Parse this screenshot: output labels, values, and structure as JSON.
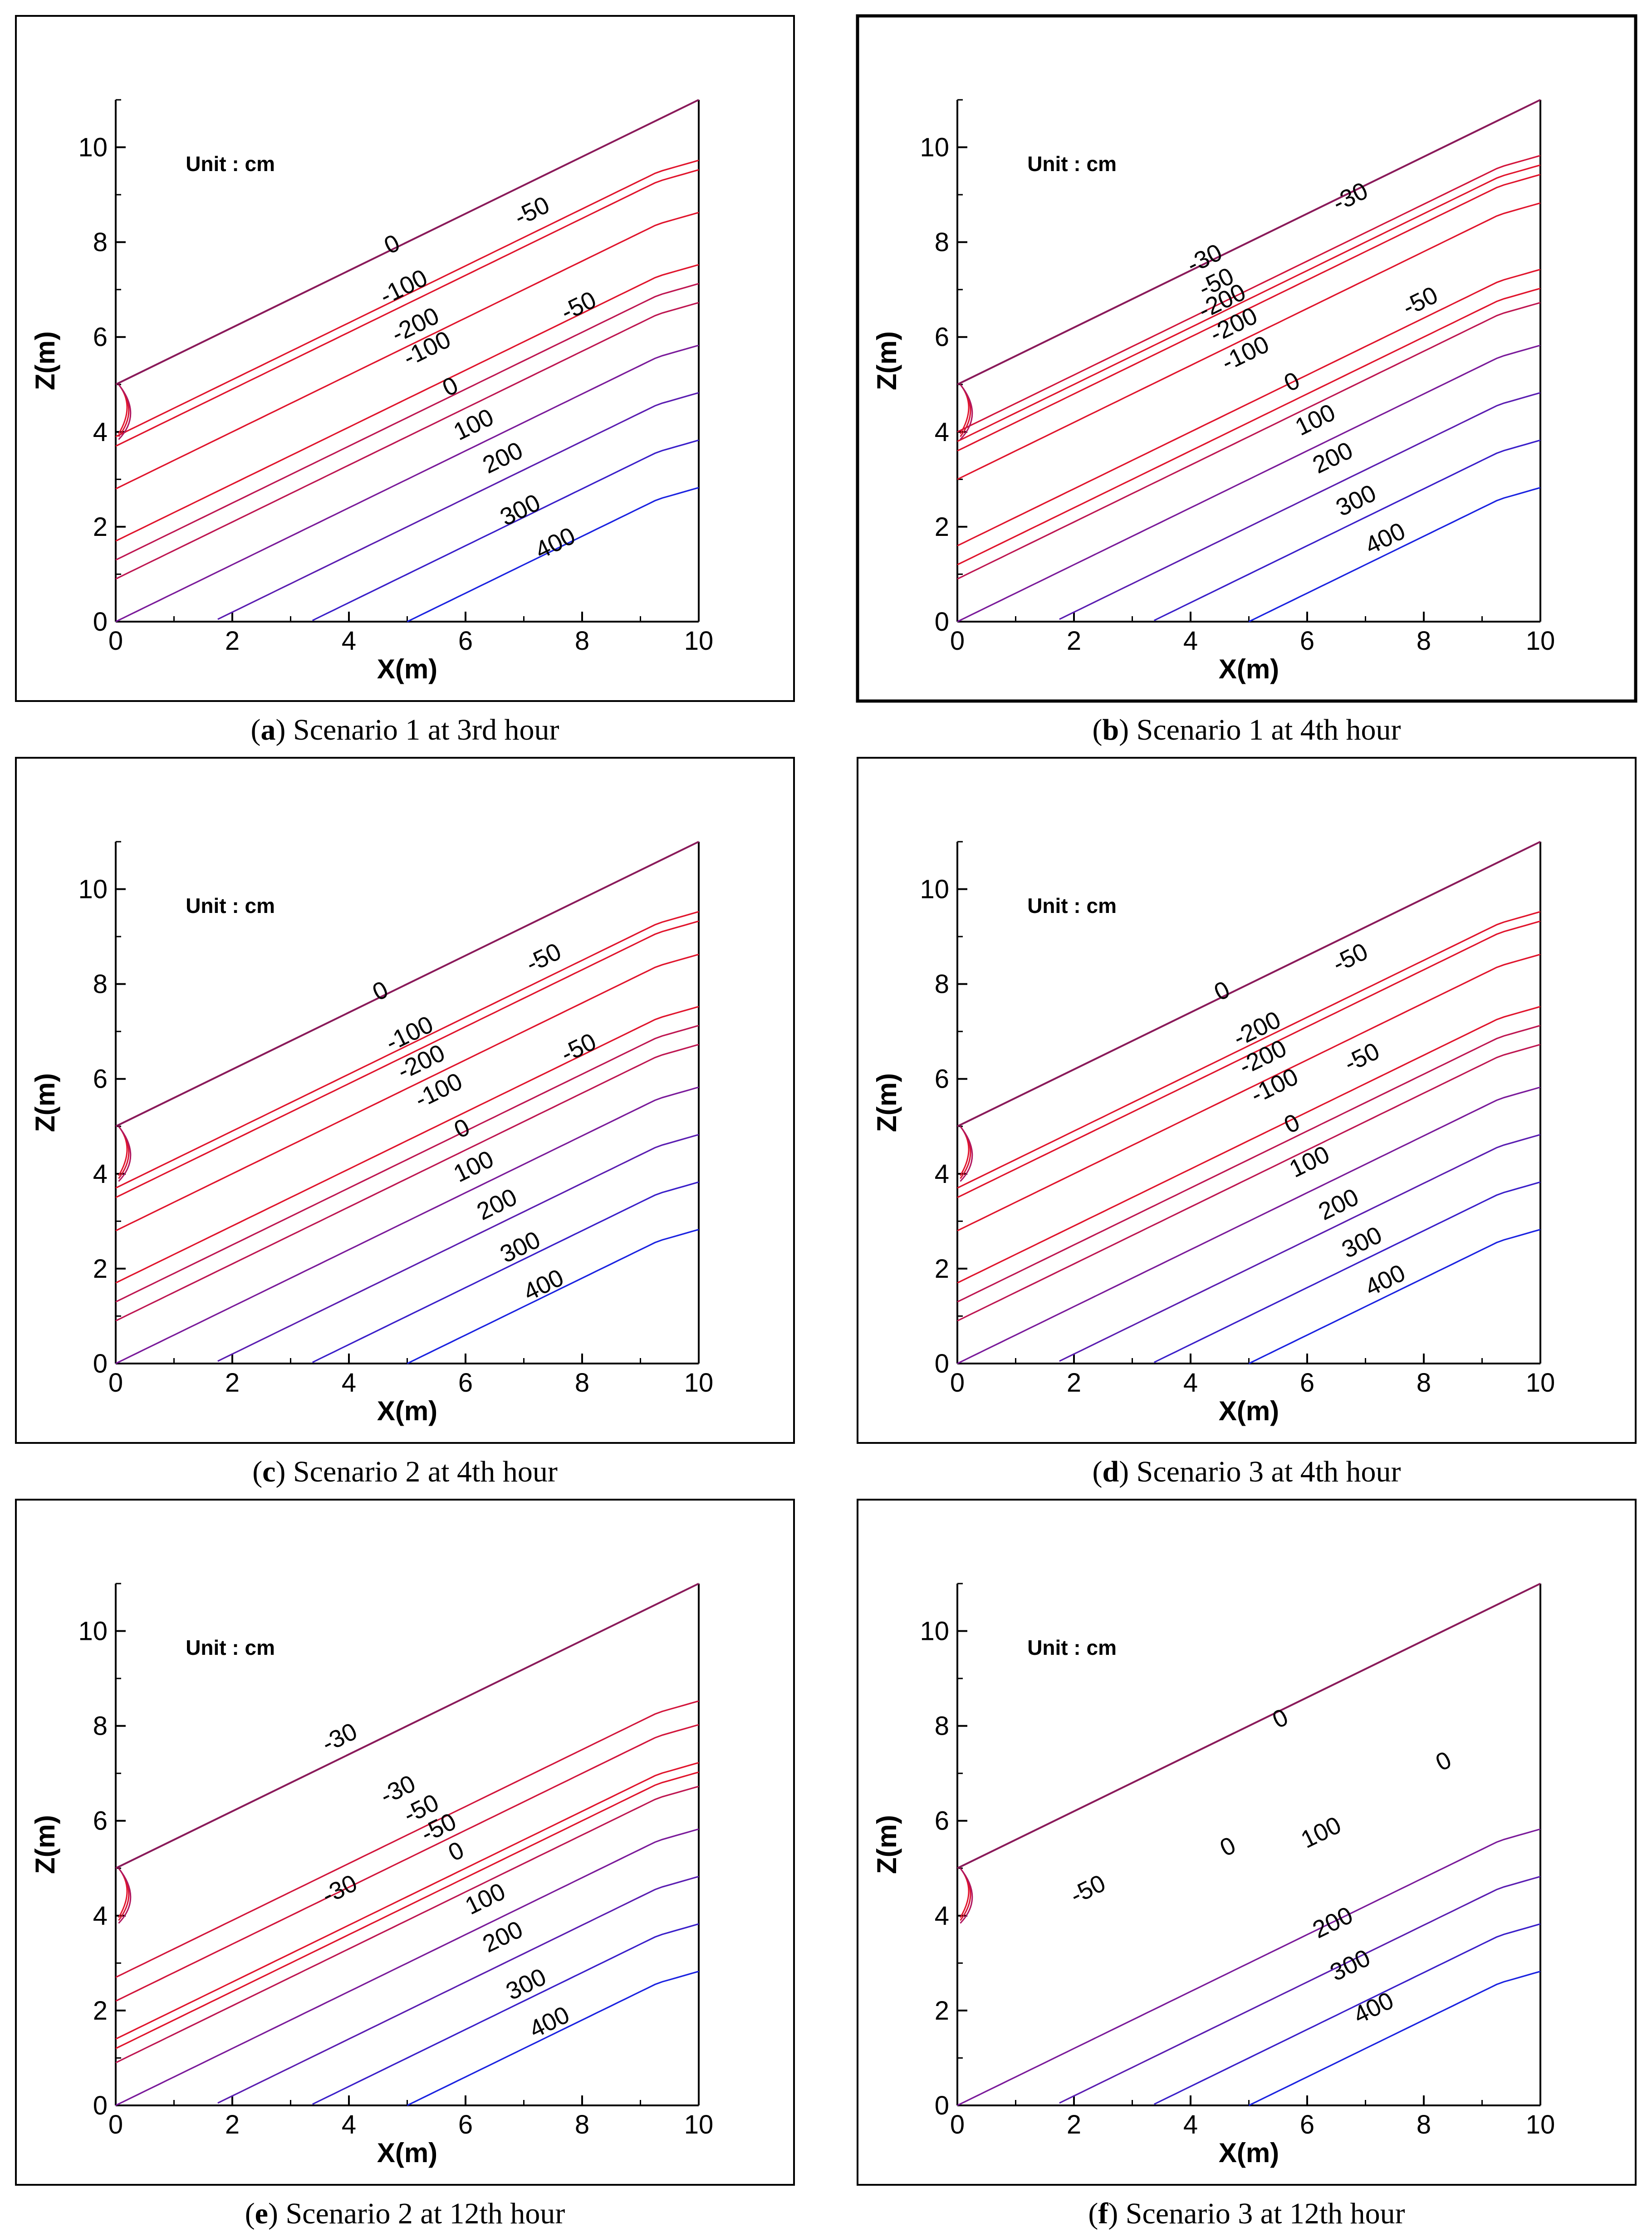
{
  "chart_data": [
    {
      "type": "contour",
      "panel": "a",
      "caption_letter": "a",
      "caption_text": "Scenario 1 at 3rd hour",
      "unit_label": "Unit : cm",
      "xlabel": "X(m)",
      "ylabel": "Z(m)",
      "xlim": [
        0,
        10
      ],
      "ylim": [
        0,
        11
      ],
      "xticks": [
        "0",
        "2",
        "4",
        "6",
        "8",
        "10"
      ],
      "yticks": [
        "0",
        "2",
        "4",
        "6",
        "8",
        "10"
      ],
      "surface": {
        "z_left": 5,
        "z_right": 11
      },
      "contour_labels": [
        {
          "text": "0",
          "x": 4.8,
          "y": 7.8
        },
        {
          "text": "-50",
          "x": 7.2,
          "y": 8.5
        },
        {
          "text": "-100",
          "x": 5.0,
          "y": 6.9
        },
        {
          "text": "-200",
          "x": 5.2,
          "y": 6.1
        },
        {
          "text": "-100",
          "x": 5.4,
          "y": 5.6
        },
        {
          "text": "-50",
          "x": 8.0,
          "y": 6.5
        },
        {
          "text": "0",
          "x": 5.8,
          "y": 4.8
        },
        {
          "text": "100",
          "x": 6.2,
          "y": 4.0
        },
        {
          "text": "200",
          "x": 6.7,
          "y": 3.3
        },
        {
          "text": "300",
          "x": 7.0,
          "y": 2.2
        },
        {
          "text": "400",
          "x": 7.6,
          "y": 1.5
        }
      ],
      "depth_layers": [
        {
          "level": -100,
          "d_far": 1.1
        },
        {
          "level": -200,
          "d_far": 1.3
        },
        {
          "level": -100,
          "d_far": 2.2
        },
        {
          "level": -50,
          "d_far": 3.3
        },
        {
          "level": 0,
          "d_far": 3.7
        },
        {
          "level": 0,
          "d_far": 4.1
        },
        {
          "level": 100,
          "d_far": 5.0
        },
        {
          "level": 200,
          "d_far": 6.0
        },
        {
          "level": 300,
          "d_far": 7.0
        },
        {
          "level": 400,
          "d_far": 8.0
        }
      ]
    },
    {
      "type": "contour",
      "panel": "b",
      "caption_letter": "b",
      "caption_text": "Scenario 1 at 4th hour",
      "unit_label": "Unit : cm",
      "xlabel": "X(m)",
      "ylabel": "Z(m)",
      "xlim": [
        0,
        10
      ],
      "ylim": [
        0,
        11
      ],
      "xticks": [
        "0",
        "2",
        "4",
        "6",
        "8",
        "10"
      ],
      "yticks": [
        "0",
        "2",
        "4",
        "6",
        "8",
        "10"
      ],
      "surface": {
        "z_left": 5,
        "z_right": 11
      },
      "contour_labels": [
        {
          "text": "-30",
          "x": 6.8,
          "y": 8.8
        },
        {
          "text": "-30",
          "x": 4.3,
          "y": 7.5
        },
        {
          "text": "-50",
          "x": 4.5,
          "y": 7.0
        },
        {
          "text": "-200",
          "x": 4.6,
          "y": 6.6
        },
        {
          "text": "-200",
          "x": 4.8,
          "y": 6.1
        },
        {
          "text": "-100",
          "x": 5.0,
          "y": 5.5
        },
        {
          "text": "-50",
          "x": 8.0,
          "y": 6.6
        },
        {
          "text": "0",
          "x": 5.8,
          "y": 4.9
        },
        {
          "text": "100",
          "x": 6.2,
          "y": 4.1
        },
        {
          "text": "200",
          "x": 6.5,
          "y": 3.3
        },
        {
          "text": "300",
          "x": 6.9,
          "y": 2.4
        },
        {
          "text": "400",
          "x": 7.4,
          "y": 1.6
        }
      ],
      "depth_layers": [
        {
          "level": -30,
          "d_far": 1.0
        },
        {
          "level": -50,
          "d_far": 1.2
        },
        {
          "level": -200,
          "d_far": 1.4
        },
        {
          "level": -200,
          "d_far": 2.0
        },
        {
          "level": -100,
          "d_far": 3.4
        },
        {
          "level": -50,
          "d_far": 3.8
        },
        {
          "level": 0,
          "d_far": 4.1
        },
        {
          "level": 100,
          "d_far": 5.0
        },
        {
          "level": 200,
          "d_far": 6.0
        },
        {
          "level": 300,
          "d_far": 7.0
        },
        {
          "level": 400,
          "d_far": 8.0
        }
      ]
    },
    {
      "type": "contour",
      "panel": "c",
      "caption_letter": "c",
      "caption_text": "Scenario 2 at 4th hour",
      "unit_label": "Unit : cm",
      "xlabel": "X(m)",
      "ylabel": "Z(m)",
      "xlim": [
        0,
        10
      ],
      "ylim": [
        0,
        11
      ],
      "xticks": [
        "0",
        "2",
        "4",
        "6",
        "8",
        "10"
      ],
      "yticks": [
        "0",
        "2",
        "4",
        "6",
        "8",
        "10"
      ],
      "surface": {
        "z_left": 5,
        "z_right": 11
      },
      "contour_labels": [
        {
          "text": "0",
          "x": 4.6,
          "y": 7.7
        },
        {
          "text": "-50",
          "x": 7.4,
          "y": 8.4
        },
        {
          "text": "-100",
          "x": 5.1,
          "y": 6.8
        },
        {
          "text": "-200",
          "x": 5.3,
          "y": 6.2
        },
        {
          "text": "-100",
          "x": 5.6,
          "y": 5.6
        },
        {
          "text": "-50",
          "x": 8.0,
          "y": 6.5
        },
        {
          "text": "0",
          "x": 6.0,
          "y": 4.8
        },
        {
          "text": "100",
          "x": 6.2,
          "y": 4.0
        },
        {
          "text": "200",
          "x": 6.6,
          "y": 3.2
        },
        {
          "text": "300",
          "x": 7.0,
          "y": 2.3
        },
        {
          "text": "400",
          "x": 7.4,
          "y": 1.5
        }
      ],
      "depth_layers": [
        {
          "level": -100,
          "d_far": 1.3
        },
        {
          "level": -200,
          "d_far": 1.5
        },
        {
          "level": -100,
          "d_far": 2.2
        },
        {
          "level": -50,
          "d_far": 3.3
        },
        {
          "level": 0,
          "d_far": 3.7
        },
        {
          "level": 0,
          "d_far": 4.1
        },
        {
          "level": 100,
          "d_far": 5.0
        },
        {
          "level": 200,
          "d_far": 6.0
        },
        {
          "level": 300,
          "d_far": 7.0
        },
        {
          "level": 400,
          "d_far": 8.0
        }
      ]
    },
    {
      "type": "contour",
      "panel": "d",
      "caption_letter": "d",
      "caption_text": "Scenario 3 at 4th hour",
      "unit_label": "Unit : cm",
      "xlabel": "X(m)",
      "ylabel": "Z(m)",
      "xlim": [
        0,
        10
      ],
      "ylim": [
        0,
        11
      ],
      "xticks": [
        "0",
        "2",
        "4",
        "6",
        "8",
        "10"
      ],
      "yticks": [
        "0",
        "2",
        "4",
        "6",
        "8",
        "10"
      ],
      "surface": {
        "z_left": 5,
        "z_right": 11
      },
      "contour_labels": [
        {
          "text": "0",
          "x": 4.6,
          "y": 7.7
        },
        {
          "text": "-50",
          "x": 6.8,
          "y": 8.4
        },
        {
          "text": "-200",
          "x": 5.2,
          "y": 6.9
        },
        {
          "text": "-200",
          "x": 5.3,
          "y": 6.3
        },
        {
          "text": "-100",
          "x": 5.5,
          "y": 5.7
        },
        {
          "text": "-50",
          "x": 7.0,
          "y": 6.3
        },
        {
          "text": "0",
          "x": 5.8,
          "y": 4.9
        },
        {
          "text": "100",
          "x": 6.1,
          "y": 4.1
        },
        {
          "text": "200",
          "x": 6.6,
          "y": 3.2
        },
        {
          "text": "300",
          "x": 7.0,
          "y": 2.4
        },
        {
          "text": "400",
          "x": 7.4,
          "y": 1.6
        }
      ],
      "depth_layers": [
        {
          "level": -200,
          "d_far": 1.3
        },
        {
          "level": -200,
          "d_far": 1.5
        },
        {
          "level": -100,
          "d_far": 2.2
        },
        {
          "level": -50,
          "d_far": 3.3
        },
        {
          "level": 0,
          "d_far": 3.7
        },
        {
          "level": 0,
          "d_far": 4.1
        },
        {
          "level": 100,
          "d_far": 5.0
        },
        {
          "level": 200,
          "d_far": 6.0
        },
        {
          "level": 300,
          "d_far": 7.0
        },
        {
          "level": 400,
          "d_far": 8.0
        }
      ]
    },
    {
      "type": "contour",
      "panel": "e",
      "caption_letter": "e",
      "caption_text": "Scenario 2 at 12th hour",
      "unit_label": "Unit : cm",
      "xlabel": "X(m)",
      "ylabel": "Z(m)",
      "xlim": [
        0,
        10
      ],
      "ylim": [
        0,
        11
      ],
      "xticks": [
        "0",
        "2",
        "4",
        "6",
        "8",
        "10"
      ],
      "yticks": [
        "0",
        "2",
        "4",
        "6",
        "8",
        "10"
      ],
      "surface": {
        "z_left": 5,
        "z_right": 11
      },
      "contour_labels": [
        {
          "text": "-30",
          "x": 3.9,
          "y": 7.6
        },
        {
          "text": "-30",
          "x": 4.9,
          "y": 6.5
        },
        {
          "text": "-50",
          "x": 5.3,
          "y": 6.1
        },
        {
          "text": "-50",
          "x": 5.6,
          "y": 5.7
        },
        {
          "text": "0",
          "x": 5.9,
          "y": 5.2
        },
        {
          "text": "-30",
          "x": 3.9,
          "y": 4.4
        },
        {
          "text": "100",
          "x": 6.4,
          "y": 4.2
        },
        {
          "text": "200",
          "x": 6.7,
          "y": 3.4
        },
        {
          "text": "300",
          "x": 7.1,
          "y": 2.4
        },
        {
          "text": "400",
          "x": 7.5,
          "y": 1.6
        }
      ],
      "depth_layers": [
        {
          "level": -30,
          "d_far": 2.3
        },
        {
          "level": -30,
          "d_far": 2.8
        },
        {
          "level": -50,
          "d_far": 3.6
        },
        {
          "level": -50,
          "d_far": 3.8
        },
        {
          "level": 0,
          "d_far": 4.1
        },
        {
          "level": 100,
          "d_far": 5.0
        },
        {
          "level": 200,
          "d_far": 6.0
        },
        {
          "level": 300,
          "d_far": 7.0
        },
        {
          "level": 400,
          "d_far": 8.0
        }
      ]
    },
    {
      "type": "contour",
      "panel": "f",
      "caption_letter": "f",
      "caption_text": "Scenario 3 at 12th hour",
      "unit_label": "Unit : cm",
      "xlabel": "X(m)",
      "ylabel": "Z(m)",
      "xlim": [
        0,
        10
      ],
      "ylim": [
        0,
        11
      ],
      "xticks": [
        "0",
        "2",
        "4",
        "6",
        "8",
        "10"
      ],
      "yticks": [
        "0",
        "2",
        "4",
        "6",
        "8",
        "10"
      ],
      "surface": {
        "z_left": 5,
        "z_right": 11
      },
      "contour_labels": [
        {
          "text": "0",
          "x": 5.6,
          "y": 8.0
        },
        {
          "text": "0",
          "x": 8.4,
          "y": 7.1
        },
        {
          "text": "0",
          "x": 4.7,
          "y": 5.3
        },
        {
          "text": "-50",
          "x": 2.3,
          "y": 4.4
        },
        {
          "text": "100",
          "x": 6.3,
          "y": 5.6
        },
        {
          "text": "200",
          "x": 6.5,
          "y": 3.7
        },
        {
          "text": "300",
          "x": 6.8,
          "y": 2.8
        },
        {
          "text": "400",
          "x": 7.2,
          "y": 1.9
        }
      ],
      "depth_layers": [
        {
          "level": 100,
          "d_far": 5.0
        },
        {
          "level": 200,
          "d_far": 6.0
        },
        {
          "level": 300,
          "d_far": 7.0
        },
        {
          "level": 400,
          "d_far": 8.0
        }
      ]
    }
  ],
  "colors": {
    "low_pressure": "#e0142c",
    "mid_pressure": "#7a1a9a",
    "high_pressure": "#1a22e0",
    "frame": "#000000"
  }
}
